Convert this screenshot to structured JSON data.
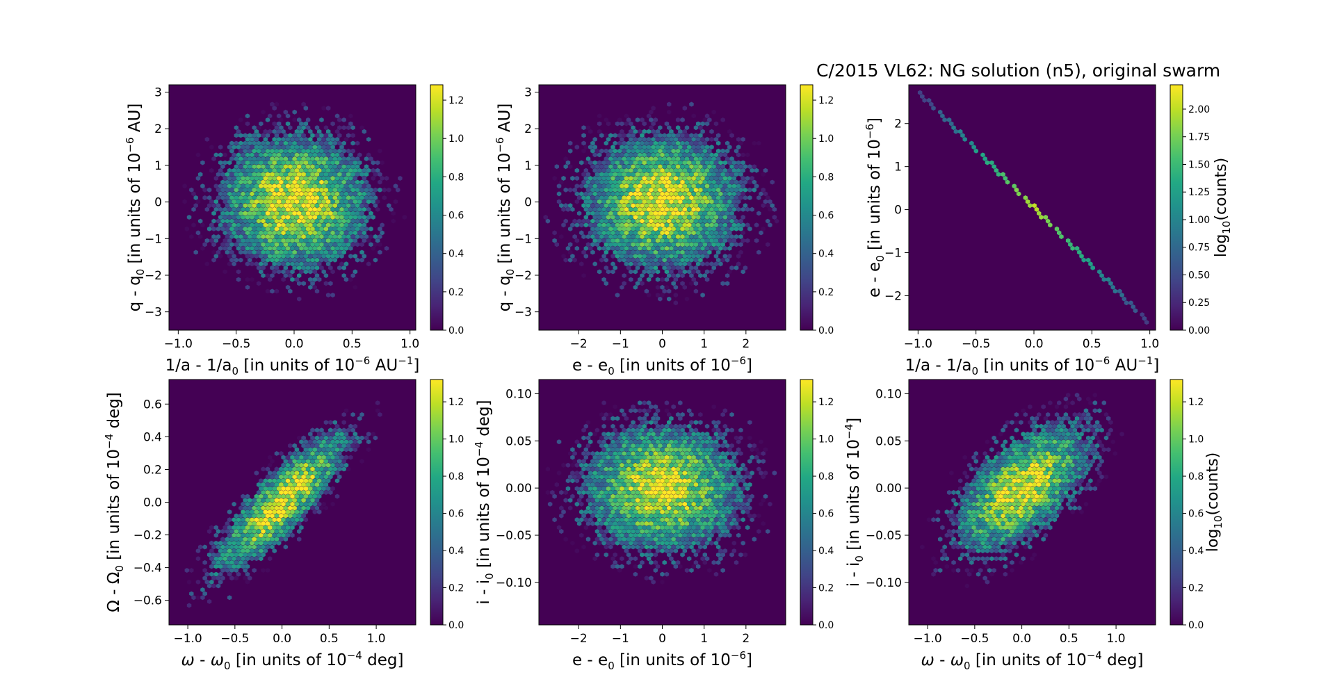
{
  "figure_title": "C/2015 VL62: NG solution (n5),  original swarm",
  "colors": {
    "background": "#440154",
    "colormap": [
      "#440154",
      "#482475",
      "#414487",
      "#355f8d",
      "#2a788e",
      "#21918c",
      "#22a884",
      "#44bf70",
      "#7ad151",
      "#bddf26",
      "#fde725"
    ]
  },
  "chart_data": [
    {
      "type": "heatmap",
      "subtype": "hexbin",
      "xlabel": {
        "pre": "1/a - 1/a",
        "sub": "0",
        "mid": " [in units of 10",
        "sup": "−6",
        "post": " AU",
        "sup2": "−1",
        "end": "]"
      },
      "ylabel": {
        "pre": "q - q",
        "sub": "0",
        "mid": " [in units of 10",
        "sup": "−6",
        "post": " AU]"
      },
      "xlim": [
        -1.08,
        1.05
      ],
      "ylim": [
        -3.5,
        3.2
      ],
      "xticks": [
        -1.0,
        -0.5,
        0.0,
        0.5,
        1.0
      ],
      "xtick_labels": [
        "−1.0",
        "−0.5",
        "0.0",
        "0.5",
        "1.0"
      ],
      "yticks": [
        -3,
        -2,
        -1,
        0,
        1,
        2,
        3
      ],
      "ytick_labels": [
        "−3",
        "−2",
        "−1",
        "0",
        "1",
        "2",
        "3"
      ],
      "distribution": {
        "shape": "ellipse",
        "center": [
          0,
          0
        ],
        "sigma_x": 0.33,
        "sigma_y": 0.95,
        "correlation": 0.0,
        "peak_log10_counts": 1.25
      },
      "colorbar": {
        "range": [
          0.0,
          1.28
        ],
        "ticks": [
          0.0,
          0.2,
          0.4,
          0.6,
          0.8,
          1.0,
          1.2
        ],
        "tick_labels": [
          "0.0",
          "0.2",
          "0.4",
          "0.6",
          "0.8",
          "1.0",
          "1.2"
        ],
        "label": null
      }
    },
    {
      "type": "heatmap",
      "subtype": "hexbin",
      "xlabel": {
        "pre": "e - e",
        "sub": "0",
        "mid": " [in units of 10",
        "sup": "−6",
        "post": "]"
      },
      "ylabel": {
        "pre": "q - q",
        "sub": "0",
        "mid": " [in units of 10",
        "sup": "−6",
        "post": " AU]"
      },
      "xlim": [
        -2.95,
        2.95
      ],
      "ylim": [
        -3.5,
        3.2
      ],
      "xticks": [
        -2,
        -1,
        0,
        1,
        2
      ],
      "xtick_labels": [
        "−2",
        "−1",
        "0",
        "1",
        "2"
      ],
      "yticks": [
        -3,
        -2,
        -1,
        0,
        1,
        2,
        3
      ],
      "ytick_labels": [
        "−3",
        "−2",
        "−1",
        "0",
        "1",
        "2",
        "3"
      ],
      "distribution": {
        "shape": "ellipse",
        "center": [
          0,
          0
        ],
        "sigma_x": 0.95,
        "sigma_y": 0.95,
        "correlation": 0.0,
        "peak_log10_counts": 1.25
      },
      "colorbar": {
        "range": [
          0.0,
          1.28
        ],
        "ticks": [
          0.0,
          0.2,
          0.4,
          0.6,
          0.8,
          1.0,
          1.2
        ],
        "tick_labels": [
          "0.0",
          "0.2",
          "0.4",
          "0.6",
          "0.8",
          "1.0",
          "1.2"
        ],
        "label": null
      }
    },
    {
      "type": "heatmap",
      "subtype": "hexbin",
      "xlabel": {
        "pre": "1/a - 1/a",
        "sub": "0",
        "mid": " [in units of 10",
        "sup": "−6",
        "post": " AU",
        "sup2": "−1",
        "end": "]"
      },
      "ylabel": {
        "pre": "e - e",
        "sub": "0",
        "mid": " [in units of 10",
        "sup": "−6",
        "post": "]"
      },
      "xlim": [
        -1.08,
        1.05
      ],
      "ylim": [
        -2.8,
        2.9
      ],
      "xticks": [
        -1.0,
        -0.5,
        0.0,
        0.5,
        1.0
      ],
      "xtick_labels": [
        "−1.0",
        "−0.5",
        "0.0",
        "0.5",
        "1.0"
      ],
      "yticks": [
        -2,
        -1,
        0,
        1,
        2
      ],
      "ytick_labels": [
        "−2",
        "−1",
        "0",
        "1",
        "2"
      ],
      "distribution": {
        "shape": "line",
        "points": [
          [
            -1.0,
            2.75
          ],
          [
            1.0,
            -2.65
          ]
        ],
        "peak_log10_counts": 2.2
      },
      "colorbar": {
        "range": [
          0.0,
          2.22
        ],
        "ticks": [
          0.0,
          0.25,
          0.5,
          0.75,
          1.0,
          1.25,
          1.5,
          1.75,
          2.0
        ],
        "tick_labels": [
          "0.00",
          "0.25",
          "0.50",
          "0.75",
          "1.00",
          "1.25",
          "1.50",
          "1.75",
          "2.00"
        ],
        "label": {
          "pre": "log",
          "sub": "10",
          "post": "(counts)"
        }
      }
    },
    {
      "type": "heatmap",
      "subtype": "hexbin",
      "xlabel": {
        "pre_ital": "ω",
        "pre": " - ",
        "ital2": "ω",
        "sub": "0",
        "mid": " [in units of 10",
        "sup": "−4",
        "post": " deg]"
      },
      "ylabel": {
        "pre": "Ω - Ω",
        "sub": "0",
        "mid": " [in units of 10",
        "sup": "−4",
        "post": " deg]"
      },
      "xlim": [
        -1.2,
        1.42
      ],
      "ylim": [
        -0.75,
        0.75
      ],
      "xticks": [
        -1.0,
        -0.5,
        0.0,
        0.5,
        1.0
      ],
      "xtick_labels": [
        "−1.0",
        "−0.5",
        "0.0",
        "0.5",
        "1.0"
      ],
      "yticks": [
        -0.6,
        -0.4,
        -0.2,
        0.0,
        0.2,
        0.4,
        0.6
      ],
      "ytick_labels": [
        "−0.6",
        "−0.4",
        "−0.2",
        "0.0",
        "0.2",
        "0.4",
        "0.6"
      ],
      "distribution": {
        "shape": "ellipse",
        "center": [
          0,
          0
        ],
        "sigma_x": 0.36,
        "sigma_y": 0.22,
        "correlation": 0.85,
        "peak_log10_counts": 1.3
      },
      "colorbar": {
        "range": [
          0.0,
          1.32
        ],
        "ticks": [
          0.0,
          0.2,
          0.4,
          0.6,
          0.8,
          1.0,
          1.2
        ],
        "tick_labels": [
          "0.0",
          "0.2",
          "0.4",
          "0.6",
          "0.8",
          "1.0",
          "1.2"
        ],
        "label": null
      }
    },
    {
      "type": "heatmap",
      "subtype": "hexbin",
      "xlabel": {
        "pre": "e - e",
        "sub": "0",
        "mid": " [in units of 10",
        "sup": "−6",
        "post": "]"
      },
      "ylabel": {
        "pre": "i - i",
        "sub": "0",
        "mid": " [in units of 10",
        "sup": "−4",
        "post": " deg]"
      },
      "xlim": [
        -2.95,
        2.95
      ],
      "ylim": [
        -0.145,
        0.115
      ],
      "xticks": [
        -2,
        -1,
        0,
        1,
        2
      ],
      "xtick_labels": [
        "−2",
        "−1",
        "0",
        "1",
        "2"
      ],
      "yticks": [
        -0.1,
        -0.05,
        0.0,
        0.05,
        0.1
      ],
      "ytick_labels": [
        "−0.10",
        "−0.05",
        "0.00",
        "0.05",
        "0.10"
      ],
      "distribution": {
        "shape": "ellipse",
        "center": [
          0,
          0
        ],
        "sigma_x": 0.95,
        "sigma_y": 0.035,
        "correlation": 0.0,
        "peak_log10_counts": 1.28
      },
      "colorbar": {
        "range": [
          0.0,
          1.32
        ],
        "ticks": [
          0.0,
          0.2,
          0.4,
          0.6,
          0.8,
          1.0,
          1.2
        ],
        "tick_labels": [
          "0.0",
          "0.2",
          "0.4",
          "0.6",
          "0.8",
          "1.0",
          "1.2"
        ],
        "label": null
      }
    },
    {
      "type": "heatmap",
      "subtype": "hexbin",
      "xlabel": {
        "pre_ital": "ω",
        "pre": " - ",
        "ital2": "ω",
        "sub": "0",
        "mid": " [in units of 10",
        "sup": "−4",
        "post": " deg]"
      },
      "ylabel": {
        "pre": "i - i",
        "sub": "0",
        "mid": " [in units of 10",
        "sup": "−4",
        "post": "]"
      },
      "xlim": [
        -1.2,
        1.42
      ],
      "ylim": [
        -0.145,
        0.115
      ],
      "xticks": [
        -1.0,
        -0.5,
        0.0,
        0.5,
        1.0
      ],
      "xtick_labels": [
        "−1.0",
        "−0.5",
        "0.0",
        "0.5",
        "1.0"
      ],
      "yticks": [
        -0.1,
        -0.05,
        0.0,
        0.05,
        0.1
      ],
      "ytick_labels": [
        "−0.10",
        "−0.05",
        "0.00",
        "0.05",
        "0.10"
      ],
      "distribution": {
        "shape": "ellipse",
        "center": [
          0,
          0
        ],
        "sigma_x": 0.36,
        "sigma_y": 0.035,
        "correlation": 0.6,
        "peak_log10_counts": 1.28
      },
      "colorbar": {
        "range": [
          0.0,
          1.32
        ],
        "ticks": [
          0.0,
          0.2,
          0.4,
          0.6,
          0.8,
          1.0,
          1.2
        ],
        "tick_labels": [
          "0.0",
          "0.2",
          "0.4",
          "0.6",
          "0.8",
          "1.0",
          "1.2"
        ],
        "label": {
          "pre": "log",
          "sub": "10",
          "post": "(counts)"
        }
      }
    }
  ]
}
